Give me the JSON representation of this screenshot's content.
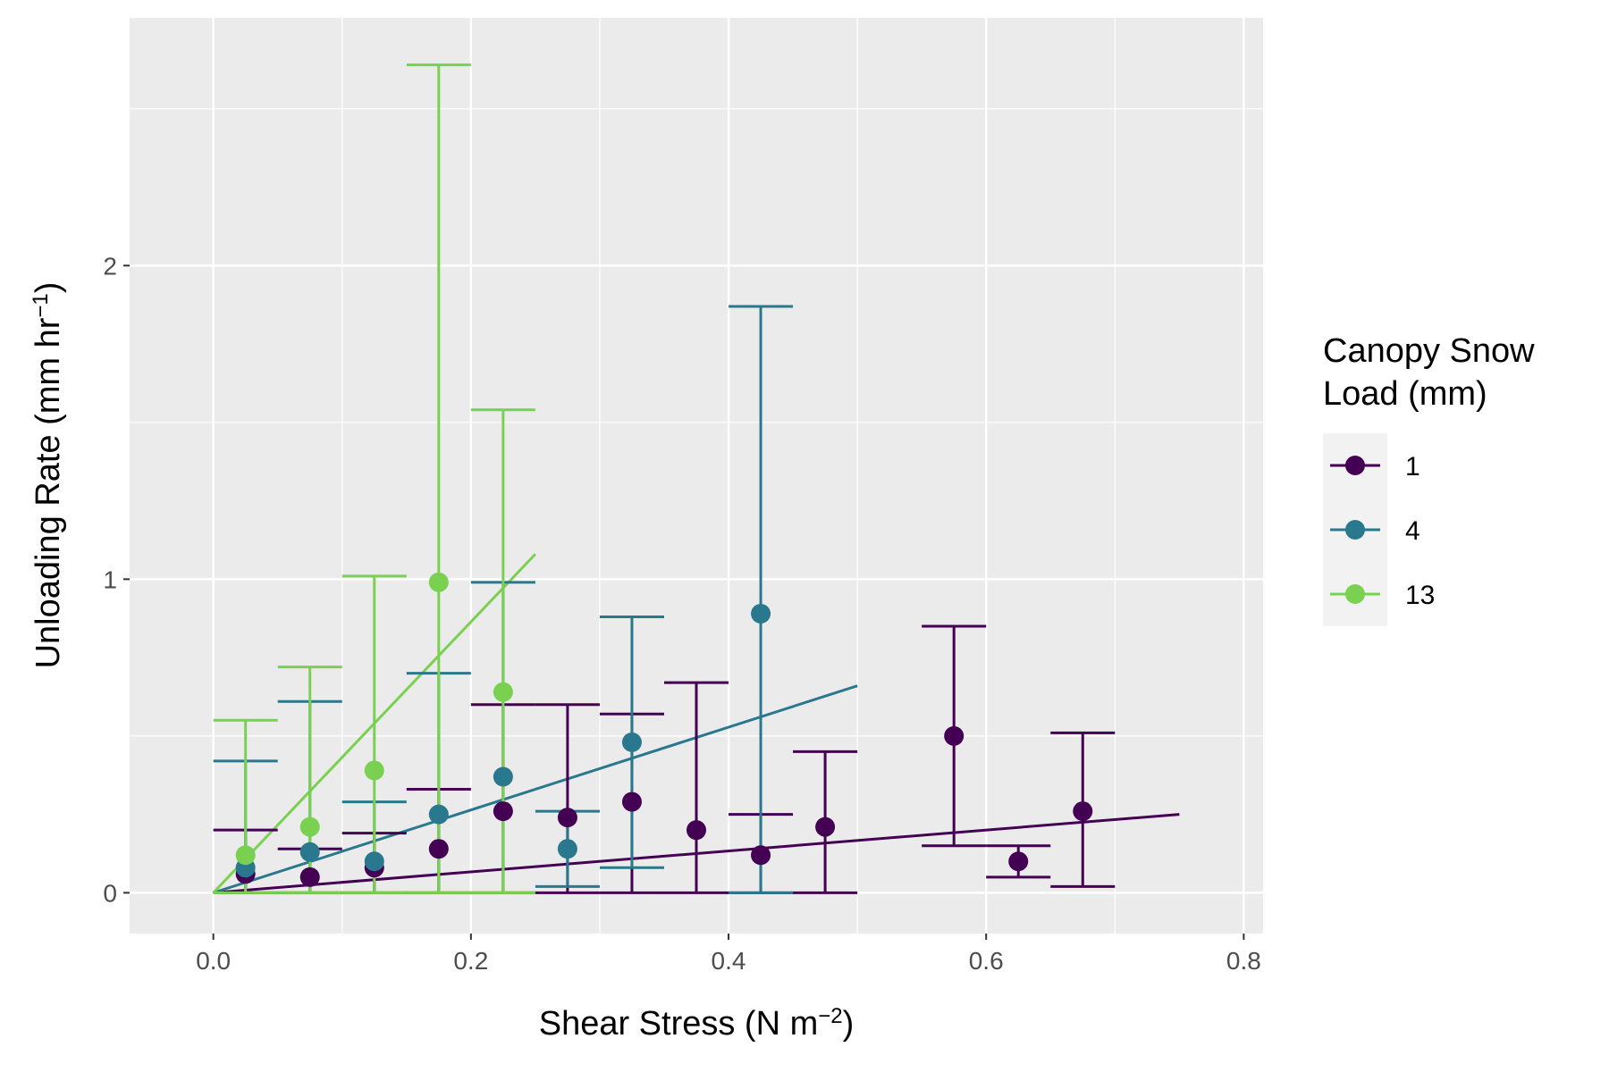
{
  "chart_data": {
    "type": "scatter",
    "xlabel": "Shear Stress (N m",
    "xlabel_sup": "−2",
    "xlabel_end": ")",
    "ylabel": "Unloading Rate (mm hr",
    "ylabel_sup": "−1",
    "ylabel_end": ")",
    "xlim": [
      -0.065,
      0.815
    ],
    "ylim": [
      -0.13,
      2.79
    ],
    "x_ticks": [
      0.0,
      0.2,
      0.4,
      0.6,
      0.8
    ],
    "x_tick_labels": [
      "0.0",
      "0.2",
      "0.4",
      "0.6",
      "0.8"
    ],
    "y_ticks": [
      0,
      1,
      2
    ],
    "y_tick_labels": [
      "0",
      "1",
      "2"
    ],
    "grid": true,
    "legend": {
      "title_line1": "Canopy Snow",
      "title_line2": "Load (mm)",
      "position": "right"
    },
    "series": [
      {
        "name": "1",
        "color": "#440154",
        "errorbar_halfwidth": 0.025,
        "points": [
          {
            "x": 0.025,
            "y": 0.06,
            "ymin": 0.0,
            "ymax": 0.2
          },
          {
            "x": 0.075,
            "y": 0.05,
            "ymin": 0.0,
            "ymax": 0.14
          },
          {
            "x": 0.125,
            "y": 0.08,
            "ymin": 0.0,
            "ymax": 0.19
          },
          {
            "x": 0.175,
            "y": 0.14,
            "ymin": 0.0,
            "ymax": 0.33
          },
          {
            "x": 0.225,
            "y": 0.26,
            "ymin": 0.0,
            "ymax": 0.6
          },
          {
            "x": 0.275,
            "y": 0.24,
            "ymin": 0.0,
            "ymax": 0.6
          },
          {
            "x": 0.325,
            "y": 0.29,
            "ymin": 0.0,
            "ymax": 0.57
          },
          {
            "x": 0.375,
            "y": 0.2,
            "ymin": 0.0,
            "ymax": 0.67
          },
          {
            "x": 0.425,
            "y": 0.12,
            "ymin": 0.0,
            "ymax": 0.25
          },
          {
            "x": 0.475,
            "y": 0.21,
            "ymin": 0.0,
            "ymax": 0.45
          },
          {
            "x": 0.575,
            "y": 0.5,
            "ymin": 0.15,
            "ymax": 0.85
          },
          {
            "x": 0.625,
            "y": 0.1,
            "ymin": 0.05,
            "ymax": 0.15
          },
          {
            "x": 0.675,
            "y": 0.26,
            "ymin": 0.02,
            "ymax": 0.51
          }
        ],
        "fit_line": {
          "x": [
            0.0,
            0.75
          ],
          "y": [
            0.0,
            0.25
          ]
        }
      },
      {
        "name": "4",
        "color": "#2A788E",
        "errorbar_halfwidth": 0.025,
        "points": [
          {
            "x": 0.025,
            "y": 0.08,
            "ymin": 0.0,
            "ymax": 0.42
          },
          {
            "x": 0.075,
            "y": 0.13,
            "ymin": 0.0,
            "ymax": 0.61
          },
          {
            "x": 0.125,
            "y": 0.1,
            "ymin": 0.0,
            "ymax": 0.29
          },
          {
            "x": 0.175,
            "y": 0.25,
            "ymin": 0.0,
            "ymax": 0.7
          },
          {
            "x": 0.225,
            "y": 0.37,
            "ymin": 0.0,
            "ymax": 0.99
          },
          {
            "x": 0.275,
            "y": 0.14,
            "ymin": 0.02,
            "ymax": 0.26
          },
          {
            "x": 0.325,
            "y": 0.48,
            "ymin": 0.08,
            "ymax": 0.88
          },
          {
            "x": 0.425,
            "y": 0.89,
            "ymin": 0.0,
            "ymax": 1.87
          }
        ],
        "fit_line": {
          "x": [
            0.0,
            0.5
          ],
          "y": [
            0.0,
            0.66
          ]
        }
      },
      {
        "name": "13",
        "color": "#7AD151",
        "errorbar_halfwidth": 0.025,
        "points": [
          {
            "x": 0.025,
            "y": 0.12,
            "ymin": 0.0,
            "ymax": 0.55
          },
          {
            "x": 0.075,
            "y": 0.21,
            "ymin": 0.0,
            "ymax": 0.72
          },
          {
            "x": 0.125,
            "y": 0.39,
            "ymin": 0.0,
            "ymax": 1.01
          },
          {
            "x": 0.175,
            "y": 0.99,
            "ymin": 0.0,
            "ymax": 2.64
          },
          {
            "x": 0.225,
            "y": 0.64,
            "ymin": 0.0,
            "ymax": 1.54
          }
        ],
        "fit_line": {
          "x": [
            0.0,
            0.25
          ],
          "y": [
            0.0,
            1.08
          ]
        }
      }
    ]
  }
}
